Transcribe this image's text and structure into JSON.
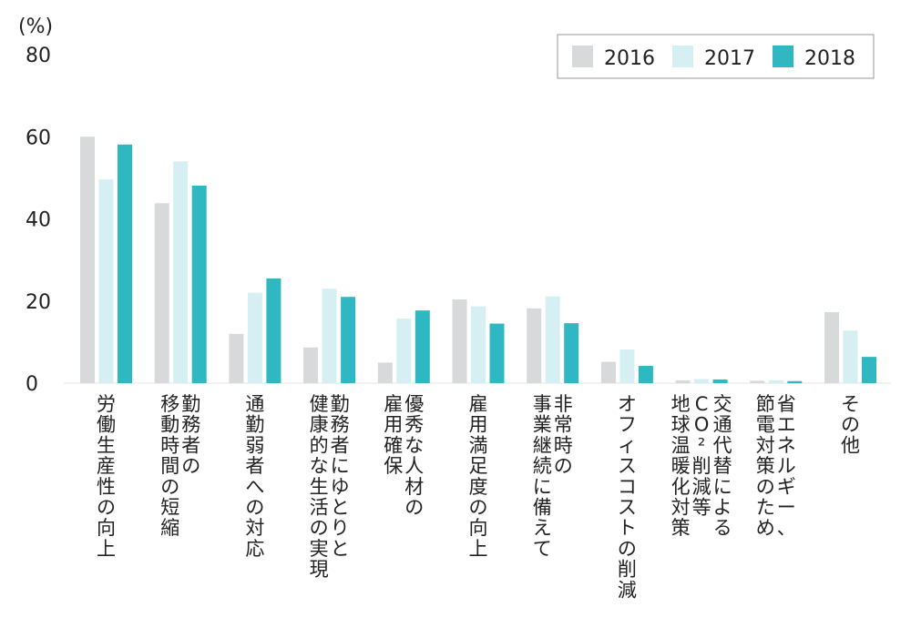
{
  "chart_data": {
    "type": "bar",
    "unit_label": "(%)",
    "ylim": [
      0,
      80
    ],
    "yticks": [
      0,
      20,
      40,
      60,
      80
    ],
    "legend_position": "top-right",
    "categories": [
      [
        "労働生産性の向上"
      ],
      [
        "勤務者の",
        "移動時間の短縮"
      ],
      [
        "通勤弱者への対応"
      ],
      [
        "勤務者にゆとりと",
        "健康的な生活の実現"
      ],
      [
        "優秀な人材の",
        "雇用確保"
      ],
      [
        "雇用満足度の向上"
      ],
      [
        "非常時の",
        "事業継続に備えて"
      ],
      [
        "オフィスコストの削減"
      ],
      [
        "交通代替による",
        "CO²削減等",
        "地球温暖化対策"
      ],
      [
        "省エネルギー、",
        "節電対策のため"
      ],
      [
        "その他"
      ]
    ],
    "series": [
      {
        "name": "2016",
        "color": "#d7d9db",
        "values": [
          60.0,
          43.8,
          12.0,
          8.7,
          5.0,
          20.4,
          18.2,
          5.2,
          0.7,
          0.6,
          17.3
        ]
      },
      {
        "name": "2017",
        "color": "#d6eff2",
        "values": [
          49.6,
          54.0,
          22.0,
          23.0,
          15.7,
          18.7,
          21.1,
          8.2,
          1.0,
          0.7,
          12.8
        ]
      },
      {
        "name": "2018",
        "color": "#2fb8c2",
        "values": [
          58.1,
          48.1,
          25.5,
          21.0,
          17.7,
          14.5,
          14.6,
          4.2,
          0.9,
          0.5,
          6.4
        ]
      }
    ]
  }
}
